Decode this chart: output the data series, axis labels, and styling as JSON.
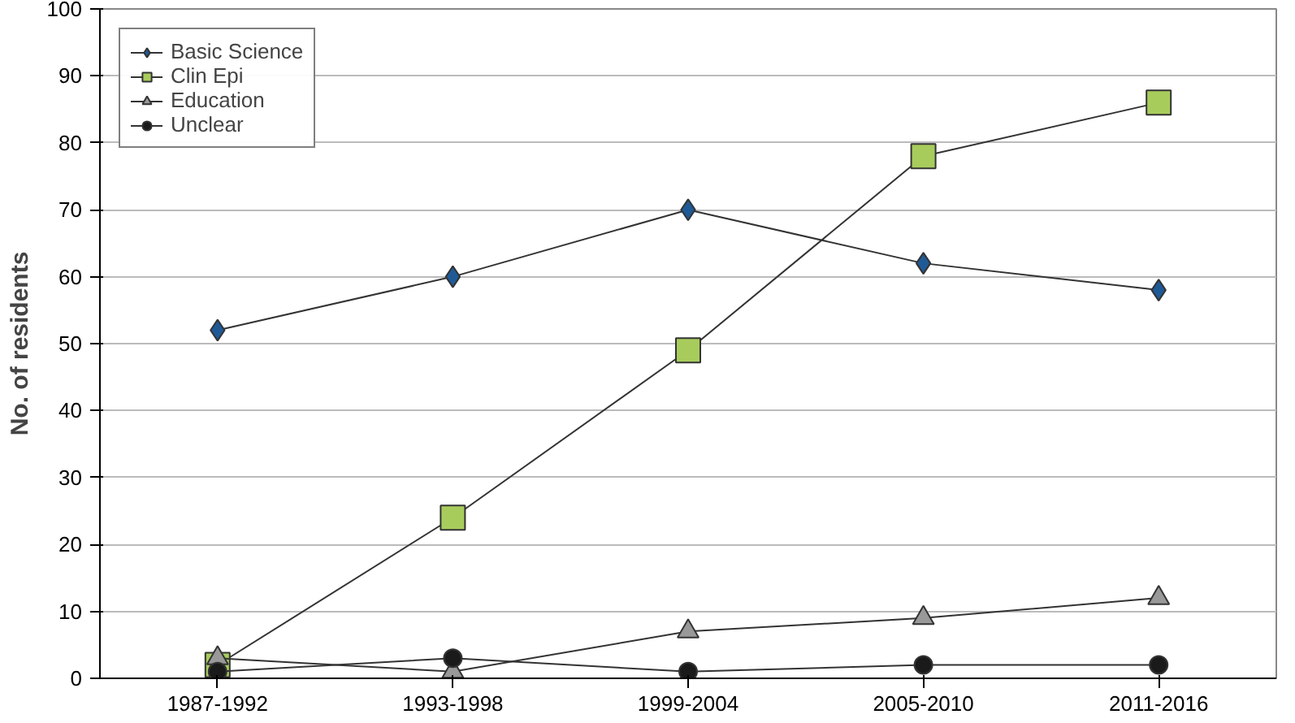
{
  "chart_data": {
    "type": "line",
    "ylabel": "No. of residents",
    "categories": [
      "1987-1992",
      "1993-1998",
      "1999-2004",
      "2005-2010",
      "2011-2016"
    ],
    "ylim": [
      0,
      100
    ],
    "yticks": [
      0,
      10,
      20,
      30,
      40,
      50,
      60,
      70,
      80,
      90,
      100
    ],
    "grid": "y",
    "legend": "top left",
    "series": [
      {
        "name": "Basic Science",
        "color": "#1f5a96",
        "marker": "diamond",
        "values": [
          52,
          60,
          70,
          62,
          58
        ]
      },
      {
        "name": "Clin Epi",
        "color": "#a8cc5c",
        "marker": "square",
        "values": [
          2,
          24,
          49,
          78,
          86
        ]
      },
      {
        "name": "Education",
        "color": "#999999",
        "marker": "triangle",
        "values": [
          3,
          1,
          7,
          9,
          12
        ]
      },
      {
        "name": "Unclear",
        "color": "#1a1a1a",
        "marker": "circle",
        "values": [
          1,
          3,
          1,
          2,
          2
        ]
      }
    ]
  }
}
